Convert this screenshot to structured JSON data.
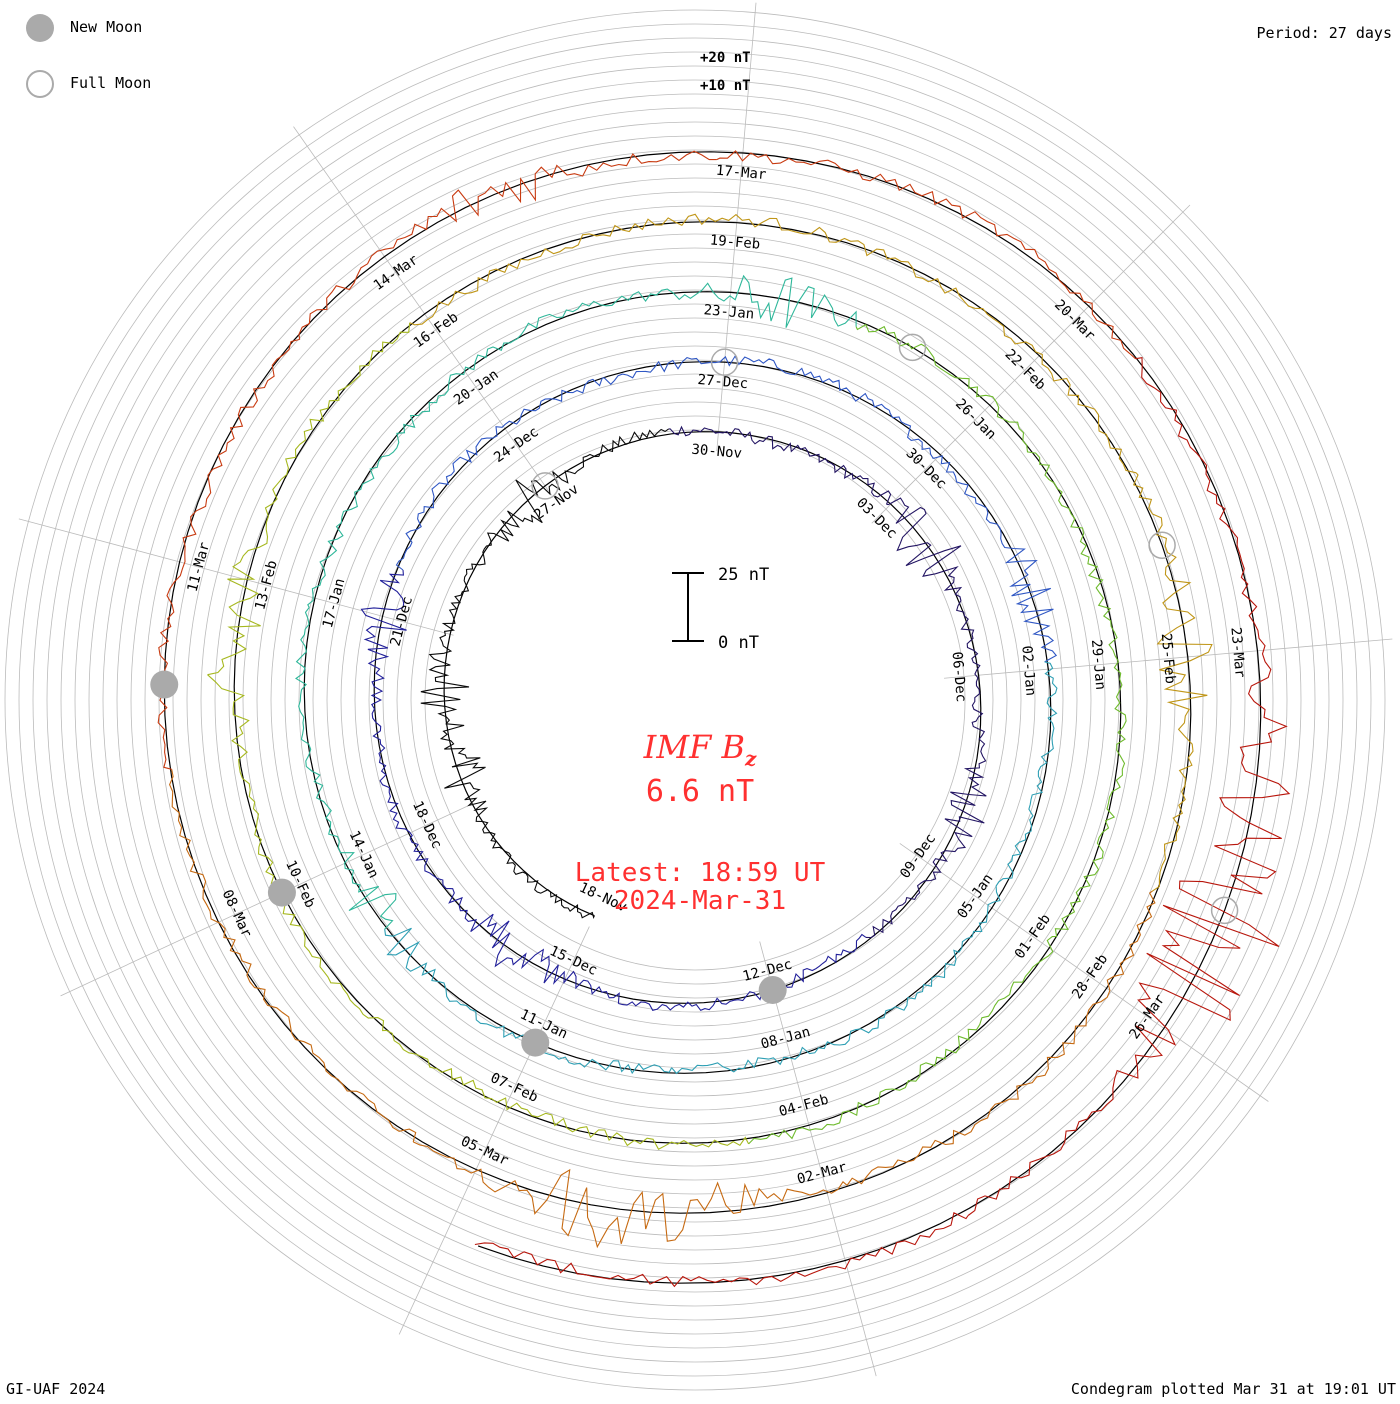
{
  "colors": {
    "series": [
      "#0a0a0a",
      "#231563",
      "#22209a",
      "#2f57c4",
      "#2e9fb4",
      "#2fb79a",
      "#6fbb2e",
      "#a6b81f",
      "#c09618",
      "#c66a12",
      "#c83a10",
      "#b8160c"
    ],
    "highlight": "#ff3030",
    "grid": "#bbbbbb",
    "moon": "#aaaaaa"
  },
  "legend": {
    "new_moon_label": "New Moon",
    "full_moon_label": "Full Moon",
    "new_moon_icon": "filled-gray-circle",
    "full_moon_icon": "hollow-gray-circle"
  },
  "header": {
    "period": "Period: 27 days"
  },
  "center": {
    "title_prefix": "IMF B",
    "title_sub": "z",
    "value": "6.6 nT",
    "latest_time": "Latest: 18:59 UT",
    "latest_date": "2024-Mar-31"
  },
  "footer": {
    "left": "GI-UAF 2024",
    "right": "Condegram plotted Mar 31 at 19:01 UT"
  },
  "chart_data": {
    "type": "line",
    "subtype": "condegram-spiral",
    "period_days": 27,
    "quantity": "IMF Bz",
    "unit": "nT",
    "outer_scale_labels": [
      "+20 nT",
      "+10 nT"
    ],
    "scale_bar": {
      "top_label": "25 nT",
      "bottom_label": "0 nT",
      "range": [
        0,
        25
      ]
    },
    "date_labels": [
      {
        "text": "18-Nov",
        "day": 0
      },
      {
        "text": "27-Nov",
        "day": 9
      },
      {
        "text": "30-Nov",
        "day": 12
      },
      {
        "text": "03-Dec",
        "day": 15
      },
      {
        "text": "06-Dec",
        "day": 18
      },
      {
        "text": "09-Dec",
        "day": 21
      },
      {
        "text": "12-Dec",
        "day": 24
      },
      {
        "text": "15-Dec",
        "day": 27
      },
      {
        "text": "18-Dec",
        "day": 30
      },
      {
        "text": "21-Dec",
        "day": 33
      },
      {
        "text": "24-Dec",
        "day": 36
      },
      {
        "text": "27-Dec",
        "day": 39
      },
      {
        "text": "30-Dec",
        "day": 42
      },
      {
        "text": "02-Jan",
        "day": 45
      },
      {
        "text": "05-Jan",
        "day": 48
      },
      {
        "text": "08-Jan",
        "day": 51
      },
      {
        "text": "11-Jan",
        "day": 54
      },
      {
        "text": "14-Jan",
        "day": 57
      },
      {
        "text": "17-Jan",
        "day": 60
      },
      {
        "text": "20-Jan",
        "day": 63
      },
      {
        "text": "23-Jan",
        "day": 66
      },
      {
        "text": "26-Jan",
        "day": 69
      },
      {
        "text": "29-Jan",
        "day": 72
      },
      {
        "text": "01-Feb",
        "day": 75
      },
      {
        "text": "04-Feb",
        "day": 78
      },
      {
        "text": "07-Feb",
        "day": 81
      },
      {
        "text": "10-Feb",
        "day": 84
      },
      {
        "text": "13-Feb",
        "day": 87
      },
      {
        "text": "16-Feb",
        "day": 90
      },
      {
        "text": "19-Feb",
        "day": 93
      },
      {
        "text": "22-Feb",
        "day": 96
      },
      {
        "text": "25-Feb",
        "day": 99
      },
      {
        "text": "28-Feb",
        "day": 102
      },
      {
        "text": "02-Mar",
        "day": 105
      },
      {
        "text": "05-Mar",
        "day": 108
      },
      {
        "text": "08-Mar",
        "day": 111
      },
      {
        "text": "11-Mar",
        "day": 114
      },
      {
        "text": "14-Mar",
        "day": 117
      },
      {
        "text": "17-Mar",
        "day": 120
      },
      {
        "text": "20-Mar",
        "day": 123
      },
      {
        "text": "23-Mar",
        "day": 126
      },
      {
        "text": "26-Mar",
        "day": 129
      }
    ],
    "new_moon_days": [
      24,
      54,
      84,
      113
    ],
    "full_moon_days": [
      9,
      39,
      68,
      98,
      128
    ],
    "latest_day": 134.8,
    "disturbances": [
      {
        "day": 3.5,
        "amp": 7
      },
      {
        "day": 5,
        "amp": 8
      },
      {
        "day": 8.5,
        "amp": 9
      },
      {
        "day": 15.8,
        "amp": 12
      },
      {
        "day": 20,
        "amp": 6
      },
      {
        "day": 27.8,
        "amp": 9
      },
      {
        "day": 33,
        "amp": 7
      },
      {
        "day": 44,
        "amp": 6
      },
      {
        "day": 56.3,
        "amp": 8
      },
      {
        "day": 66.5,
        "amp": 9
      },
      {
        "day": 86.5,
        "amp": 14
      },
      {
        "day": 99,
        "amp": 9
      },
      {
        "day": 106,
        "amp": 8
      },
      {
        "day": 107,
        "amp": 12
      },
      {
        "day": 118,
        "amp": 7
      },
      {
        "day": 127,
        "amp": 11
      },
      {
        "day": 128,
        "amp": 8
      },
      {
        "day": 128.5,
        "amp": 22
      }
    ],
    "grid": true
  }
}
